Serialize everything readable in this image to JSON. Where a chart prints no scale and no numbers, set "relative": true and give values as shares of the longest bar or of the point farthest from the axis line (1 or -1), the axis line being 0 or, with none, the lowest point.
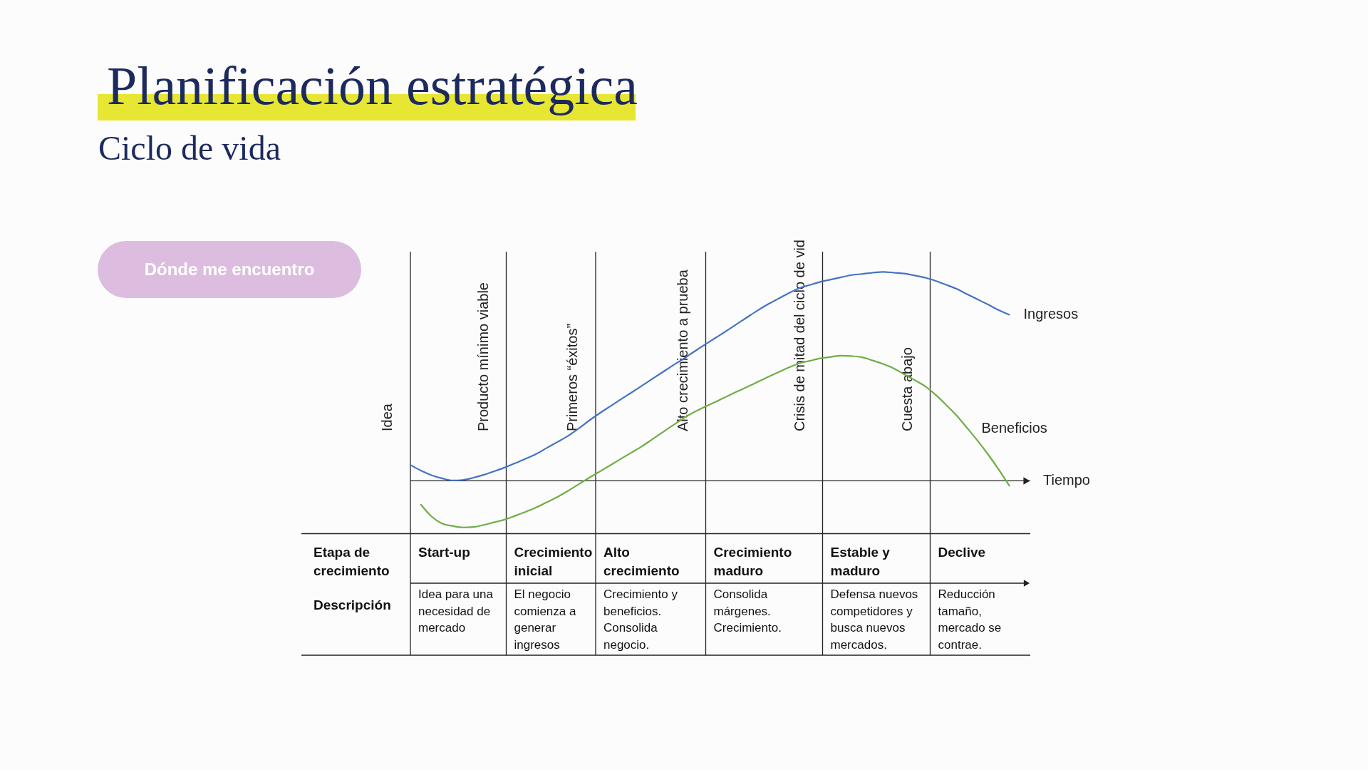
{
  "chart_data": {
    "type": "line",
    "title": "Planificación estratégica",
    "subtitle": "Ciclo de vida",
    "xlabel": "Tiempo",
    "relative": true,
    "grid": "x",
    "categories": [
      null,
      null,
      null,
      null,
      null,
      null,
      null,
      null,
      null,
      null,
      null,
      null,
      null,
      null,
      null,
      null,
      null,
      null,
      null,
      null,
      null,
      null,
      null,
      null,
      null,
      null,
      null,
      null,
      null,
      null,
      null,
      null,
      null,
      null,
      null,
      null,
      null,
      null,
      null,
      null,
      null,
      null,
      null,
      null,
      null,
      null,
      null,
      null,
      null,
      null,
      null,
      null,
      null,
      null,
      null,
      null,
      null,
      null,
      null,
      null
    ],
    "series": [
      {
        "name": "Ingresos",
        "color": "#4472c4",
        "values": [
          0.076,
          0.049,
          0.027,
          0.012,
          0.002,
          0.004,
          0.015,
          0.029,
          0.046,
          0.064,
          0.085,
          0.106,
          0.129,
          0.158,
          0.186,
          0.215,
          0.25,
          0.288,
          0.323,
          0.356,
          0.389,
          0.421,
          0.454,
          0.487,
          0.52,
          0.553,
          0.584,
          0.618,
          0.651,
          0.683,
          0.715,
          0.748,
          0.781,
          0.814,
          0.844,
          0.871,
          0.898,
          0.922,
          0.937,
          0.952,
          0.963,
          0.974,
          0.985,
          0.99,
          0.996,
          1.0,
          0.996,
          0.992,
          0.983,
          0.972,
          0.957,
          0.938,
          0.918,
          0.893,
          0.868,
          0.843,
          0.817,
          0.795,
          null,
          null
        ]
      },
      {
        "name": "Beneficios",
        "color": "#70ad47",
        "values": [
          null,
          -0.114,
          -0.17,
          -0.204,
          -0.216,
          -0.223,
          -0.221,
          -0.211,
          -0.198,
          -0.185,
          -0.167,
          -0.148,
          -0.127,
          -0.102,
          -0.077,
          -0.048,
          -0.017,
          0.014,
          0.044,
          0.074,
          0.104,
          0.134,
          0.164,
          0.198,
          0.232,
          0.266,
          0.3,
          0.329,
          0.354,
          0.377,
          0.401,
          0.425,
          0.448,
          0.472,
          0.496,
          0.519,
          0.542,
          0.562,
          0.574,
          0.586,
          0.593,
          0.599,
          0.597,
          0.591,
          0.576,
          0.559,
          0.538,
          0.51,
          0.482,
          0.452,
          0.411,
          0.363,
          0.312,
          0.252,
          0.191,
          0.125,
          0.054,
          -0.023,
          null,
          null
        ]
      }
    ],
    "annotations": [
      "Dónde me encuentro",
      "Idea",
      "Producto mínimo viable",
      "Primeros “éxitos”",
      "Alto crecimiento a prueba",
      "Crisis de mitad del ciclo de vid",
      "Cuesta abajo",
      "Etapa de crecimiento",
      "Descripción",
      "Start-up",
      "Idea para una necesidad de mercado",
      "Crecimiento inicial",
      "El negocio comienza a generar ingresos",
      "Alto crecimiento",
      "Crecimiento y beneficios. Consolida negocio.",
      "Crecimiento maduro",
      "Consolida márgenes. Crecimiento.",
      "Estable y maduro",
      "Defensa nuevos competidores y busca nuevos mercados.",
      "Declive",
      "Reducción tamaño, mercado se contrae."
    ]
  }
}
